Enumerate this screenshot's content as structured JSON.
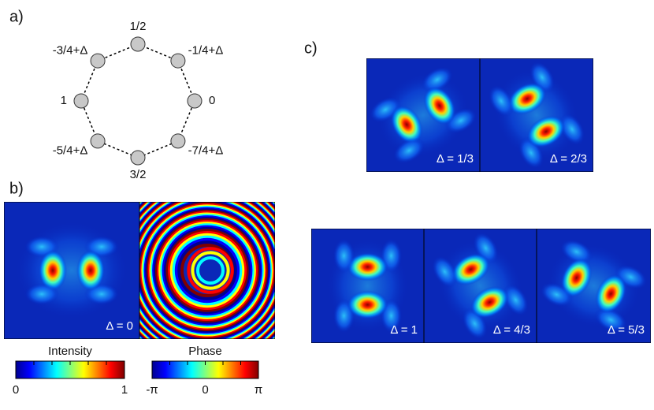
{
  "panels": {
    "a": {
      "label": "a)",
      "nodes": [
        "1/2",
        "-1/4+Δ",
        "0",
        "-7/4+Δ",
        "3/2",
        "-5/4+Δ",
        "1",
        "-3/4+Δ"
      ]
    },
    "b": {
      "label": "b)",
      "image_label": "Δ = 0",
      "colorbars": [
        {
          "title": "Intensity",
          "ticks": [
            "0",
            "1"
          ]
        },
        {
          "title": "Phase",
          "ticks": [
            "-π",
            "0",
            "π"
          ]
        }
      ]
    },
    "c": {
      "label": "c)",
      "image_labels": [
        "Δ = 1/3",
        "Δ = 2/3",
        "Δ = 1",
        "Δ = 4/3",
        "Δ = 5/3"
      ]
    }
  }
}
